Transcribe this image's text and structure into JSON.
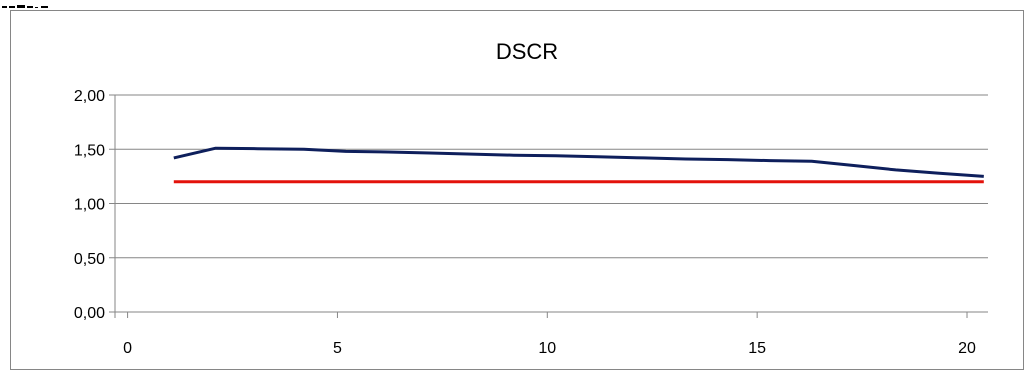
{
  "chart_data": {
    "type": "line",
    "title": "DSCR",
    "xlabel": "",
    "ylabel": "",
    "xlim": [
      -0.3,
      20.5
    ],
    "ylim": [
      0,
      2
    ],
    "x_ticks": [
      {
        "value": 0,
        "label": "0"
      },
      {
        "value": 5,
        "label": "5"
      },
      {
        "value": 10,
        "label": "10"
      },
      {
        "value": 15,
        "label": "15"
      },
      {
        "value": 20,
        "label": "20"
      }
    ],
    "y_ticks": [
      {
        "value": 0,
        "label": "0,00"
      },
      {
        "value": 0.5,
        "label": "0,50"
      },
      {
        "value": 1,
        "label": "1,00"
      },
      {
        "value": 1.5,
        "label": "1,50"
      },
      {
        "value": 2,
        "label": "2,00"
      }
    ],
    "grid": "horizontal",
    "legend": "none",
    "series": [
      {
        "color": "#0e1f5c",
        "points": [
          {
            "x": 1.1,
            "y": 1.42
          },
          {
            "x": 2.1,
            "y": 1.51
          },
          {
            "x": 3.1,
            "y": 1.505
          },
          {
            "x": 4.2,
            "y": 1.5
          },
          {
            "x": 5.2,
            "y": 1.48
          },
          {
            "x": 6.2,
            "y": 1.475
          },
          {
            "x": 7.2,
            "y": 1.465
          },
          {
            "x": 8.2,
            "y": 1.455
          },
          {
            "x": 9.2,
            "y": 1.445
          },
          {
            "x": 10.2,
            "y": 1.44
          },
          {
            "x": 11.2,
            "y": 1.43
          },
          {
            "x": 12.3,
            "y": 1.42
          },
          {
            "x": 13.3,
            "y": 1.41
          },
          {
            "x": 14.3,
            "y": 1.405
          },
          {
            "x": 15.3,
            "y": 1.395
          },
          {
            "x": 16.3,
            "y": 1.39
          },
          {
            "x": 17.3,
            "y": 1.35
          },
          {
            "x": 18.3,
            "y": 1.31
          },
          {
            "x": 19.3,
            "y": 1.28
          },
          {
            "x": 20.4,
            "y": 1.25
          }
        ]
      },
      {
        "color": "#e3120b",
        "points": [
          {
            "x": 1.1,
            "y": 1.2
          },
          {
            "x": 20.4,
            "y": 1.2
          }
        ]
      }
    ]
  },
  "top_strip": {
    "color": "#000000"
  }
}
